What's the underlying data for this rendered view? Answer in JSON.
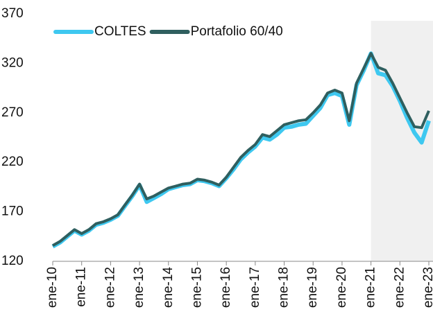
{
  "chart_data": {
    "type": "line",
    "categories": [
      "ene-10",
      null,
      null,
      null,
      "ene-11",
      null,
      null,
      null,
      "ene-12",
      null,
      null,
      null,
      "ene-13",
      null,
      null,
      null,
      "ene-14",
      null,
      null,
      null,
      "ene-15",
      null,
      null,
      null,
      "ene-16",
      null,
      null,
      null,
      "ene-17",
      null,
      null,
      null,
      "ene-18",
      null,
      null,
      null,
      "ene-19",
      null,
      null,
      null,
      "ene-20",
      null,
      null,
      null,
      "ene-21",
      null,
      null,
      null,
      "ene-22",
      null,
      null,
      null,
      "ene-23"
    ],
    "series": [
      {
        "name": "COLTES",
        "color": "#3ec8f0",
        "values": [
          135,
          139,
          145,
          151,
          147,
          151,
          157,
          159,
          162,
          166,
          176,
          186,
          197,
          180,
          184,
          188,
          193,
          195,
          197,
          198,
          202,
          201,
          199,
          196,
          204,
          213,
          223,
          230,
          236,
          245,
          243,
          248,
          255,
          256,
          258,
          259,
          267,
          275,
          288,
          290,
          287,
          258,
          298,
          313,
          330,
          310,
          308,
          297,
          282,
          265,
          250,
          240,
          262
        ]
      },
      {
        "name": "Portafolio 60/40",
        "color": "#2f5f5f",
        "values": [
          136,
          140,
          146,
          152,
          148,
          152,
          158,
          160,
          163,
          167,
          177,
          187,
          198,
          183,
          186,
          190,
          194,
          196,
          198,
          199,
          203,
          202,
          200,
          197,
          205,
          215,
          225,
          232,
          238,
          248,
          246,
          252,
          258,
          260,
          262,
          263,
          270,
          278,
          290,
          293,
          290,
          262,
          300,
          315,
          330,
          316,
          313,
          300,
          285,
          270,
          256,
          255,
          272
        ]
      }
    ],
    "shade_from": "ene-21",
    "shade_color": "#f0f0f0",
    "ylim": [
      120,
      370
    ],
    "yticks": [
      120,
      170,
      220,
      270,
      320,
      370
    ],
    "grid": false,
    "legend": "top-left"
  }
}
